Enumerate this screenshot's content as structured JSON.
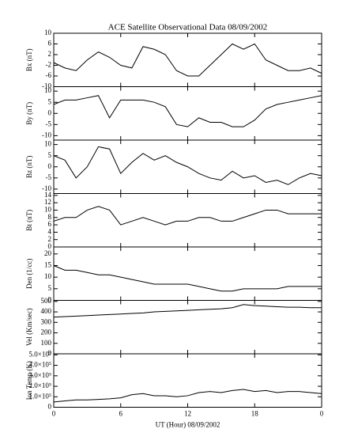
{
  "chart_data": [
    {
      "type": "line",
      "title": "ACE Satellite Observational Data   08/09/2002",
      "ylabel": "Bx (nT)",
      "x": [
        0,
        1,
        2,
        3,
        4,
        5,
        6,
        7,
        8,
        9,
        10,
        11,
        12,
        13,
        14,
        15,
        16,
        17,
        18,
        19,
        20,
        21,
        22,
        23,
        24
      ],
      "series": [
        {
          "name": "Bx",
          "color": "#000000",
          "values": [
            -1,
            -3,
            -4,
            0,
            3,
            1,
            -2,
            -3,
            5,
            4,
            2,
            -4,
            -6,
            -6,
            -2,
            2,
            6,
            4,
            6,
            0,
            -2,
            -4,
            -4,
            -3,
            -5
          ]
        }
      ],
      "xlim": [
        0,
        24
      ],
      "xticks": [
        0,
        6,
        12,
        18,
        24
      ],
      "ylim": [
        -10,
        10
      ],
      "yticks": [
        -10,
        -6,
        -2,
        2,
        6,
        10
      ]
    },
    {
      "type": "line",
      "ylabel": "By (nT)",
      "x": [
        0,
        1,
        2,
        3,
        4,
        5,
        6,
        7,
        8,
        9,
        10,
        11,
        12,
        13,
        14,
        15,
        16,
        17,
        18,
        19,
        20,
        21,
        22,
        23,
        24
      ],
      "series": [
        {
          "name": "By",
          "color": "#000000",
          "values": [
            4,
            6,
            6,
            7,
            8,
            -2,
            6,
            6,
            6,
            5,
            3,
            -5,
            -6,
            -2,
            -4,
            -4,
            -6,
            -6,
            -3,
            2,
            4,
            5,
            6,
            7,
            8
          ]
        }
      ],
      "xlim": [
        0,
        24
      ],
      "xticks": [
        0,
        6,
        12,
        18,
        24
      ],
      "ylim": [
        -12,
        12
      ],
      "yticks": [
        -10,
        -5,
        0,
        5,
        10
      ]
    },
    {
      "type": "line",
      "ylabel": "Bz (nT)",
      "x": [
        0,
        1,
        2,
        3,
        4,
        5,
        6,
        7,
        8,
        9,
        10,
        11,
        12,
        13,
        14,
        15,
        16,
        17,
        18,
        19,
        20,
        21,
        22,
        23,
        24
      ],
      "series": [
        {
          "name": "Bz",
          "color": "#000000",
          "values": [
            5,
            3,
            -5,
            0,
            9,
            8,
            -3,
            2,
            6,
            3,
            5,
            2,
            0,
            -3,
            -5,
            -6,
            -2,
            -5,
            -4,
            -7,
            -6,
            -8,
            -5,
            -3,
            -4
          ]
        }
      ],
      "xlim": [
        0,
        24
      ],
      "xticks": [
        0,
        6,
        12,
        18,
        24
      ],
      "ylim": [
        -12,
        12
      ],
      "yticks": [
        -10,
        -5,
        0,
        5,
        10
      ]
    },
    {
      "type": "line",
      "ylabel": "Bt (nT)",
      "x": [
        0,
        1,
        2,
        3,
        4,
        5,
        6,
        7,
        8,
        9,
        10,
        11,
        12,
        13,
        14,
        15,
        16,
        17,
        18,
        19,
        20,
        21,
        22,
        23,
        24
      ],
      "series": [
        {
          "name": "Bt",
          "color": "#000000",
          "values": [
            7,
            8,
            8,
            10,
            11,
            10,
            6,
            7,
            8,
            7,
            6,
            7,
            7,
            8,
            8,
            7,
            7,
            8,
            9,
            10,
            10,
            9,
            9,
            9,
            9
          ]
        }
      ],
      "xlim": [
        0,
        24
      ],
      "xticks": [
        0,
        6,
        12,
        18,
        24
      ],
      "ylim": [
        0,
        14.5
      ],
      "yticks": [
        0,
        2,
        4,
        6,
        8,
        10,
        12,
        14
      ]
    },
    {
      "type": "line",
      "ylabel": "Den (1/cc)",
      "x": [
        0,
        1,
        2,
        3,
        4,
        5,
        6,
        7,
        8,
        9,
        10,
        11,
        12,
        13,
        14,
        15,
        16,
        17,
        18,
        19,
        20,
        21,
        22,
        23,
        24
      ],
      "series": [
        {
          "name": "Den",
          "color": "#000000",
          "values": [
            15,
            13,
            13,
            12,
            11,
            11,
            10,
            9,
            8,
            7,
            7,
            7,
            7,
            6,
            5,
            4,
            4,
            5,
            5,
            5,
            5,
            6,
            6,
            6,
            6
          ]
        }
      ],
      "xlim": [
        0,
        24
      ],
      "xticks": [
        0,
        6,
        12,
        18,
        24
      ],
      "ylim": [
        0,
        23
      ],
      "yticks": [
        0,
        5,
        10,
        15,
        20
      ]
    },
    {
      "type": "line",
      "ylabel": "Vel (Km/sec)",
      "x": [
        0,
        1,
        2,
        3,
        4,
        5,
        6,
        7,
        8,
        9,
        10,
        11,
        12,
        13,
        14,
        15,
        16,
        17,
        18,
        19,
        20,
        21,
        22,
        23,
        24
      ],
      "series": [
        {
          "name": "Vel",
          "color": "#000000",
          "values": [
            350,
            355,
            360,
            365,
            370,
            375,
            380,
            385,
            390,
            400,
            405,
            410,
            415,
            420,
            425,
            430,
            440,
            470,
            460,
            455,
            450,
            445,
            445,
            440,
            440
          ]
        }
      ],
      "xlim": [
        0,
        24
      ],
      "xticks": [
        0,
        6,
        12,
        18,
        24
      ],
      "ylim": [
        0,
        510
      ],
      "yticks": [
        0,
        100,
        200,
        300,
        400,
        500
      ]
    },
    {
      "type": "line",
      "ylabel": "Ion Temp (K)",
      "xlabel": "UT (Hour)   08/09/2002",
      "x": [
        0,
        1,
        2,
        3,
        4,
        5,
        6,
        7,
        8,
        9,
        10,
        11,
        12,
        13,
        14,
        15,
        16,
        17,
        18,
        19,
        20,
        21,
        22,
        23,
        24
      ],
      "series": [
        {
          "name": "Ion Temp",
          "color": "#000000",
          "values": [
            50000,
            60000,
            70000,
            70000,
            75000,
            80000,
            90000,
            120000,
            130000,
            110000,
            110000,
            100000,
            110000,
            140000,
            150000,
            140000,
            160000,
            170000,
            150000,
            160000,
            140000,
            150000,
            150000,
            140000,
            130000
          ]
        }
      ],
      "xlim": [
        0,
        24
      ],
      "xticks": [
        0,
        6,
        12,
        18,
        {
          "value": 24,
          "label": "0"
        }
      ],
      "ylim": [
        0,
        510000
      ],
      "yticks": [
        0,
        {
          "value": 100000,
          "label": "1.0×10⁵"
        },
        {
          "value": 200000,
          "label": "2.0×10⁵"
        },
        {
          "value": 300000,
          "label": "3.0×10⁵"
        },
        {
          "value": 400000,
          "label": "4.0×10⁵"
        },
        {
          "value": 500000,
          "label": "5.0×10⁵"
        }
      ]
    }
  ]
}
